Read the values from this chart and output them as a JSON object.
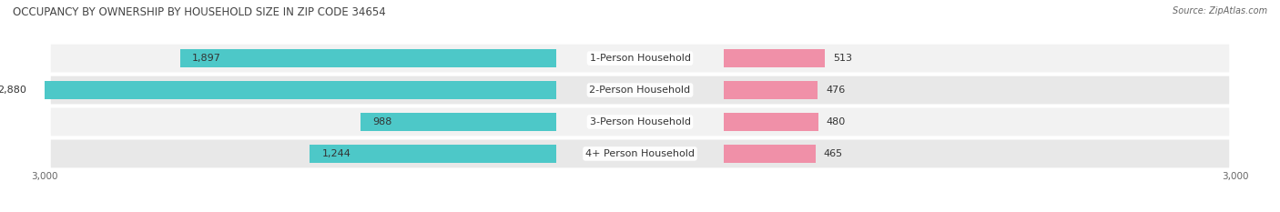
{
  "title": "OCCUPANCY BY OWNERSHIP BY HOUSEHOLD SIZE IN ZIP CODE 34654",
  "source": "Source: ZipAtlas.com",
  "categories": [
    "1-Person Household",
    "2-Person Household",
    "3-Person Household",
    "4+ Person Household"
  ],
  "owner_values": [
    1897,
    2880,
    988,
    1244
  ],
  "renter_values": [
    513,
    476,
    480,
    465
  ],
  "owner_color": "#4dc8c8",
  "renter_color": "#f090a8",
  "owner_color_light": "#7dd8d8",
  "renter_color_light": "#f4b8c8",
  "row_bg_light": "#f2f2f2",
  "row_bg_dark": "#e8e8e8",
  "xlim": 3000,
  "label_fontsize": 8.0,
  "title_fontsize": 8.5,
  "source_fontsize": 7.0,
  "tick_fontsize": 7.5,
  "legend_fontsize": 7.5,
  "bar_height": 0.58,
  "figsize": [
    14.06,
    2.33
  ],
  "dpi": 100
}
